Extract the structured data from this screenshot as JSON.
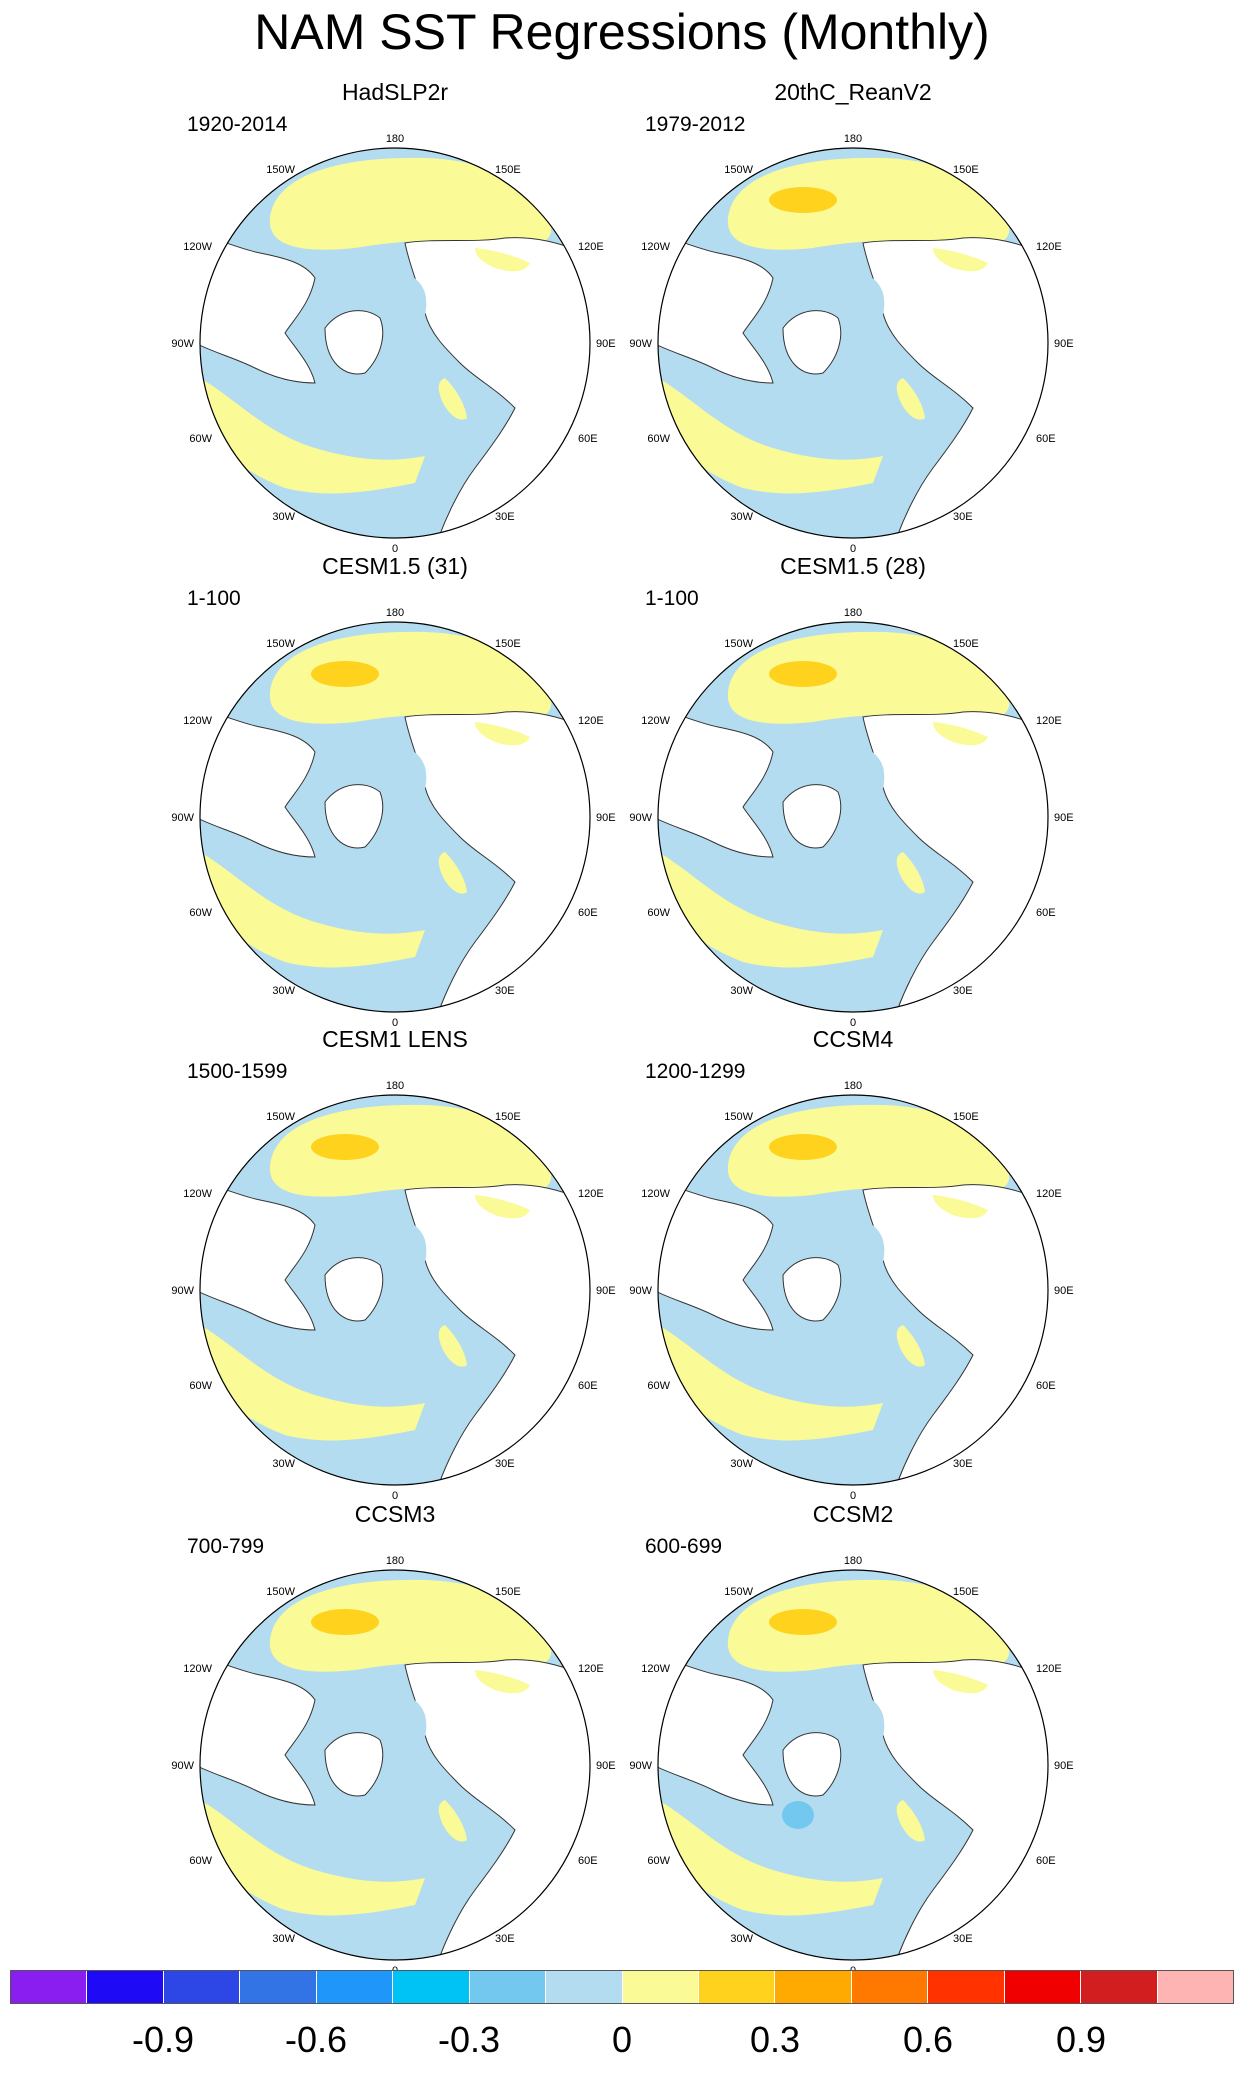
{
  "title": "NAM SST Regressions (Monthly)",
  "panels": [
    {
      "id": "hadslp2r",
      "title": "HadSLP2r",
      "period": "1920-2014",
      "pattern": "obs"
    },
    {
      "id": "20thc",
      "title": "20thC_ReanV2",
      "period": "1979-2012",
      "pattern": "obs2"
    },
    {
      "id": "cesm15-31",
      "title": "CESM1.5 (31)",
      "period": "1-100",
      "pattern": "model"
    },
    {
      "id": "cesm15-28",
      "title": "CESM1.5 (28)",
      "period": "1-100",
      "pattern": "model2"
    },
    {
      "id": "cesm1-lens",
      "title": "CESM1 LENS",
      "period": "1500-1599",
      "pattern": "model"
    },
    {
      "id": "ccsm4",
      "title": "CCSM4",
      "period": "1200-1299",
      "pattern": "model2"
    },
    {
      "id": "ccsm3",
      "title": "CCSM3",
      "period": "700-799",
      "pattern": "model"
    },
    {
      "id": "ccsm2",
      "title": "CCSM2",
      "period": "600-699",
      "pattern": "model3"
    }
  ],
  "lon_labels": {
    "top": "180",
    "bottom": "0",
    "left_mid": "90W",
    "right_mid": "90E",
    "upper_left": "150W",
    "upper_left2": "120W",
    "upper_right": "150E",
    "upper_right2": "120E",
    "lower_left": "60W",
    "lower_left2": "30W",
    "lower_right": "60E",
    "lower_right2": "30E"
  },
  "colorbar": {
    "colors": [
      "#8a1ef0",
      "#1e0af5",
      "#2d46e6",
      "#3273e6",
      "#1e96fa",
      "#00c3f5",
      "#73c8f0",
      "#b4dcf0",
      "#fafa96",
      "#ffd21e",
      "#ffaa00",
      "#ff7800",
      "#ff3200",
      "#f00000",
      "#d21e1e",
      "#ffb4b4"
    ],
    "labels": [
      "-0.9",
      "-0.6",
      "-0.3",
      "0",
      "0.3",
      "0.6",
      "0.9"
    ]
  },
  "colors": {
    "land": "#ffffff",
    "neg_weak": "#b4dcf0",
    "pos_weak": "#fafa96",
    "pos_mid": "#ffd21e",
    "neg_mid": "#73c8f0",
    "coast": "#333333"
  }
}
